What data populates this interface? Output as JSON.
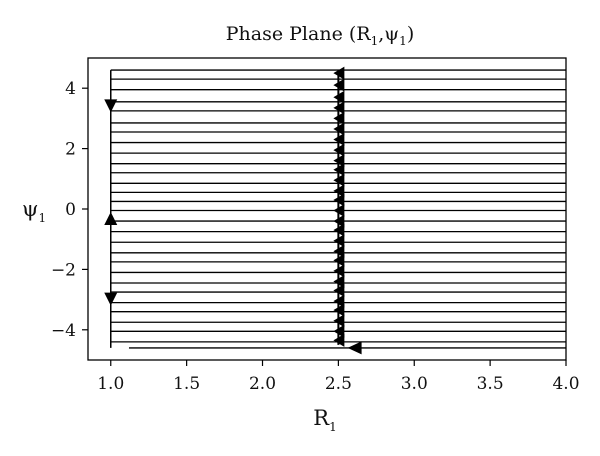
{
  "chart_data": {
    "type": "streamplot",
    "title": {
      "main": "Phase Plane (R",
      "sub1": "1",
      "sep": ",ψ",
      "sub2": "1",
      "close": ")"
    },
    "xlabel": {
      "main": "R",
      "sub": "1"
    },
    "ylabel": {
      "main": "ψ",
      "sub": "1"
    },
    "xlim": [
      0.85,
      4.0
    ],
    "ylim": [
      -5,
      5
    ],
    "xticks": [
      1.0,
      1.5,
      2.0,
      2.5,
      3.0,
      3.5,
      4.0
    ],
    "xtick_labels": [
      "1.0",
      "1.5",
      "2.0",
      "2.5",
      "3.0",
      "3.5",
      "4.0"
    ],
    "yticks": [
      4,
      2,
      0,
      -2,
      -4
    ],
    "ytick_labels": [
      "4",
      "2",
      "0",
      "−2",
      "−4"
    ],
    "grid": false,
    "color": "#000000",
    "stream_left_x": 1.0,
    "stream_right_x": 4.0,
    "nullcline_x": 2.5,
    "vertical_line_x": 1.0,
    "vertical_line_ylim": [
      -4.6,
      4.6
    ],
    "streamlines_psi": [
      4.6,
      4.3,
      3.95,
      3.55,
      3.25,
      2.85,
      2.55,
      2.2,
      1.85,
      1.5,
      1.2,
      0.85,
      0.55,
      0.25,
      -0.05,
      -0.4,
      -0.75,
      -1.1,
      -1.45,
      -1.75,
      -2.1,
      -2.45,
      -2.75,
      -3.1,
      -3.4,
      -3.75,
      -4.05,
      -4.4
    ],
    "nullcline_arrows_psi": [
      4.5,
      4.1,
      3.7,
      3.35,
      3.0,
      2.65,
      2.3,
      1.95,
      1.6,
      1.3,
      0.95,
      0.6,
      0.3,
      -0.05,
      -0.4,
      -0.7,
      -1.05,
      -1.4,
      -1.7,
      -2.05,
      -2.4,
      -2.7,
      -3.05,
      -3.35,
      -3.7,
      -4.05,
      -4.35
    ],
    "vertical_arrows": [
      {
        "psi": 3.4,
        "direction": "down"
      },
      {
        "psi": -0.3,
        "direction": "up"
      },
      {
        "psi": -3.0,
        "direction": "down"
      }
    ],
    "bottom_streamline": {
      "psi": -4.6,
      "x_start": 1.12,
      "x_end": 4.0,
      "arrow_x": 2.62
    }
  }
}
